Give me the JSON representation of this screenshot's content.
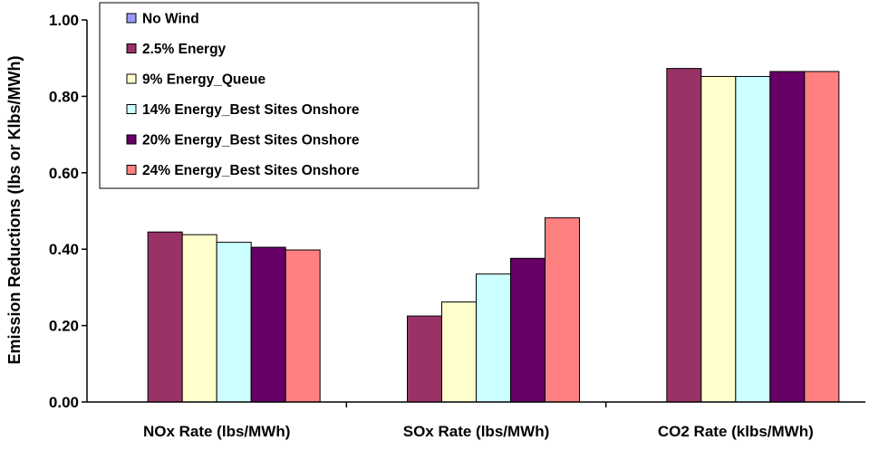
{
  "chart_data": {
    "type": "bar",
    "title": "",
    "xlabel": "",
    "ylabel": "Emission Reductions (lbs or Klbs/MWh)",
    "ylim": [
      0,
      1.0
    ],
    "yticks": [
      "0.00",
      "0.20",
      "0.40",
      "0.60",
      "0.80",
      "1.00"
    ],
    "grid": false,
    "legend_position": "top-left",
    "categories": [
      "NOx Rate (lbs/MWh)",
      "SOx Rate (lbs/MWh)",
      "CO2 Rate (klbs/MWh)"
    ],
    "series": [
      {
        "name": "No Wind",
        "color": "#9999FF",
        "values": [
          0,
          0,
          0
        ]
      },
      {
        "name": "2.5% Energy",
        "color": "#993366",
        "values": [
          0.445,
          0.225,
          0.873
        ]
      },
      {
        "name": "9% Energy_Queue",
        "color": "#FFFFCC",
        "values": [
          0.438,
          0.262,
          0.852
        ]
      },
      {
        "name": "14% Energy_Best Sites Onshore",
        "color": "#CCFFFF",
        "values": [
          0.418,
          0.335,
          0.852
        ]
      },
      {
        "name": "20% Energy_Best Sites Onshore",
        "color": "#660066",
        "values": [
          0.405,
          0.376,
          0.865
        ]
      },
      {
        "name": "24% Energy_Best Sites Onshore",
        "color": "#FF8080",
        "values": [
          0.398,
          0.482,
          0.865
        ]
      }
    ]
  }
}
